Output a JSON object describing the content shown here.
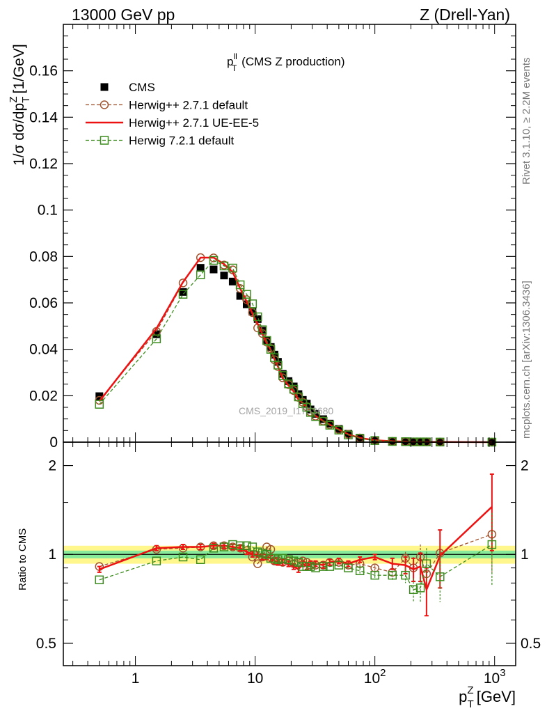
{
  "header": {
    "left": "13000 GeV pp",
    "right": "Z (Drell-Yan)"
  },
  "side_texts": {
    "rivet": "Rivet 3.1.10, ≥ 2.2M events",
    "mcplots": "mcplots.cern.ch [arXiv:1306.3436]"
  },
  "watermark": "CMS_2019_I1753680",
  "colors": {
    "cms": "#000000",
    "herwig_pp_default": "#a0522d",
    "herwig_pp_ueee5": "#ee1111",
    "herwig7": "#3c8c1e",
    "band_outer": "#fff68c",
    "band_inner": "#86ea9a"
  },
  "chart_data": [
    {
      "type": "scatter",
      "title": "p_T^ll (CMS Z production)",
      "title_main": "p",
      "title_sup": "ll",
      "title_sub": "T",
      "title_rest": "(CMS Z production)",
      "ylabel": "1/σ dσ/dp_T^Z [1/GeV]",
      "ylabel_main": "1/σ dσ/dp",
      "ylabel_sub": "T",
      "ylabel_sup": "Z",
      "ylabel_rest": "[1/GeV]",
      "xscale": "log",
      "xlim": [
        0.25,
        1500
      ],
      "ylim": [
        0,
        0.18
      ],
      "y_ticks": [
        0,
        0.02,
        0.04,
        0.06,
        0.08,
        0.1,
        0.12,
        0.14,
        0.16
      ],
      "y_tick_labels": [
        "0",
        "0.02",
        "0.04",
        "0.06",
        "0.08",
        "0.1",
        "0.12",
        "0.14",
        "0.16"
      ],
      "legend_position": "top-left",
      "x": [
        0.5,
        1.5,
        2.5,
        3.5,
        4.5,
        5.5,
        6.5,
        7.5,
        8.5,
        9.5,
        10.5,
        11.5,
        12.5,
        13.5,
        14.5,
        15.5,
        17,
        19,
        21,
        23,
        25,
        27,
        29,
        32,
        37,
        42,
        50,
        60,
        75,
        100,
        140,
        180,
        210,
        240,
        270,
        350,
        950
      ],
      "series": [
        {
          "name": "CMS",
          "style": "data",
          "y": [
            0.0198,
            0.0465,
            0.0647,
            0.0751,
            0.0744,
            0.0718,
            0.0692,
            0.063,
            0.0594,
            0.0562,
            0.053,
            0.048,
            0.0438,
            0.041,
            0.0377,
            0.0346,
            0.0294,
            0.0263,
            0.024,
            0.0207,
            0.0182,
            0.0166,
            0.0141,
            0.0122,
            0.0099,
            0.008,
            0.0057,
            0.0036,
            0.0019,
            0.0009,
            0.0004,
            0.0002,
            0.0001,
            0.0001,
            0.0001,
            5e-05,
            1e-05
          ]
        },
        {
          "name": "Herwig++ 2.7.1 default",
          "style": "dashed-circle",
          "y": [
            0.018,
            0.0477,
            0.0686,
            0.0795,
            0.0794,
            0.0763,
            0.0742,
            0.0662,
            0.0614,
            0.0558,
            0.0492,
            0.0468,
            0.0431,
            0.0404,
            0.0355,
            0.0326,
            0.0277,
            0.0248,
            0.0222,
            0.0193,
            0.0172,
            0.0153,
            0.013,
            0.0112,
            0.0091,
            0.0075,
            0.0054,
            0.0034,
            0.0018,
            0.0008,
            0.0003,
            0.0002,
            0.0001,
            0.0001,
            0.0001,
            5e-05,
            1e-05
          ]
        },
        {
          "name": "Herwig++ 2.7.1 UE-EE-5",
          "style": "solid-line",
          "y": [
            0.0176,
            0.049,
            0.069,
            0.0795,
            0.0795,
            0.0767,
            0.0732,
            0.0662,
            0.0605,
            0.0553,
            0.0509,
            0.0465,
            0.0426,
            0.0398,
            0.0358,
            0.0326,
            0.0275,
            0.0244,
            0.0218,
            0.0183,
            0.0168,
            0.015,
            0.013,
            0.0113,
            0.0091,
            0.0075,
            0.0054,
            0.0033,
            0.0018,
            0.0008,
            0.0004,
            0.0002,
            0.0001,
            0.0001,
            0.0001,
            5e-05,
            1e-05
          ]
        },
        {
          "name": "Herwig 7.2.1 default",
          "style": "dashed-square",
          "y": [
            0.0163,
            0.0445,
            0.0637,
            0.0721,
            0.0783,
            0.0759,
            0.075,
            0.0678,
            0.0637,
            0.0596,
            0.054,
            0.0484,
            0.0438,
            0.04,
            0.0364,
            0.0332,
            0.0287,
            0.0251,
            0.0228,
            0.0195,
            0.0166,
            0.015,
            0.0128,
            0.011,
            0.009,
            0.0073,
            0.0052,
            0.0031,
            0.0016,
            0.0007,
            0.0003,
            0.0002,
            0.0001,
            0.0001,
            0.0001,
            4e-05,
            1e-05
          ]
        }
      ]
    },
    {
      "type": "scatter",
      "ylabel": "Ratio to CMS",
      "xlabel": "p_T^Z [GeV]",
      "xlabel_main": "p",
      "xlabel_sub": "T",
      "xlabel_sup": "Z",
      "xlabel_rest": "[GeV]",
      "xscale": "log",
      "yscale": "log",
      "xlim": [
        0.25,
        1500
      ],
      "ylim": [
        0.42,
        2.4
      ],
      "y_ticks": [
        0.5,
        1,
        2
      ],
      "y_tick_labels": [
        "0.5",
        "1",
        "2"
      ],
      "x_ticks": [
        1,
        10,
        100,
        1000
      ],
      "x_tick_labels": [
        {
          "base": "1",
          "sup": ""
        },
        {
          "base": "10",
          "sup": ""
        },
        {
          "base": "10",
          "sup": "2"
        },
        {
          "base": "10",
          "sup": "3"
        }
      ],
      "band_inner": {
        "lo": 0.97,
        "hi": 1.03
      },
      "band_outer": {
        "lo": 0.93,
        "hi": 1.07
      },
      "x": [
        0.5,
        1.5,
        2.5,
        3.5,
        4.5,
        5.5,
        6.5,
        7.5,
        8.5,
        9.5,
        10.5,
        11.5,
        12.5,
        13.5,
        14.5,
        15.5,
        17,
        19,
        21,
        23,
        25,
        27,
        29,
        32,
        37,
        42,
        50,
        60,
        75,
        100,
        140,
        180,
        210,
        240,
        270,
        350,
        950
      ],
      "series": [
        {
          "name": "Herwig++ 2.7.1 default",
          "style": "dashed-circle",
          "y": [
            0.91,
            1.04,
            1.05,
            1.06,
            1.07,
            1.07,
            1.06,
            1.05,
            1.03,
            0.98,
            0.93,
            0.98,
            1.06,
            1.04,
            0.95,
            0.95,
            0.94,
            0.95,
            0.93,
            0.94,
            0.95,
            0.94,
            0.92,
            0.92,
            0.92,
            0.94,
            0.94,
            0.92,
            0.93,
            0.9,
            0.87,
            0.97,
            0.9,
            0.98,
            0.86,
            1.01,
            1.17
          ],
          "err": [
            0.01,
            0.01,
            0.01,
            0.01,
            0.01,
            0.01,
            0.01,
            0.01,
            0.01,
            0.01,
            0.01,
            0.01,
            0.01,
            0.01,
            0.01,
            0.01,
            0.01,
            0.01,
            0.01,
            0.01,
            0.01,
            0.01,
            0.01,
            0.01,
            0.01,
            0.01,
            0.01,
            0.01,
            0.02,
            0.02,
            0.03,
            0.05,
            0.08,
            0.1,
            0.12,
            0.15,
            0.3
          ]
        },
        {
          "name": "Herwig++ 2.7.1 UE-EE-5",
          "style": "solid-line",
          "y": [
            0.89,
            1.05,
            1.06,
            1.06,
            1.07,
            1.07,
            1.06,
            1.05,
            1.02,
            1.0,
            1.0,
            0.98,
            0.98,
            0.97,
            0.95,
            0.94,
            0.94,
            0.93,
            0.91,
            0.89,
            0.93,
            0.91,
            0.93,
            0.93,
            0.92,
            0.94,
            0.95,
            0.93,
            0.96,
            0.98,
            0.93,
            0.92,
            0.89,
            0.91,
            0.76,
            0.99,
            1.45
          ],
          "err": [
            0.02,
            0.02,
            0.02,
            0.02,
            0.02,
            0.02,
            0.02,
            0.02,
            0.02,
            0.02,
            0.02,
            0.02,
            0.02,
            0.02,
            0.02,
            0.02,
            0.02,
            0.02,
            0.02,
            0.02,
            0.02,
            0.02,
            0.02,
            0.02,
            0.02,
            0.02,
            0.02,
            0.02,
            0.02,
            0.02,
            0.04,
            0.06,
            0.08,
            0.1,
            0.14,
            0.22,
            0.42
          ]
        },
        {
          "name": "Herwig 7.2.1 default",
          "style": "dashed-square",
          "y": [
            0.82,
            0.95,
            0.98,
            0.96,
            1.05,
            1.06,
            1.08,
            1.07,
            1.07,
            1.06,
            1.02,
            1.01,
            1.0,
            0.97,
            0.97,
            0.96,
            0.97,
            0.96,
            0.95,
            0.94,
            0.91,
            0.91,
            0.91,
            0.9,
            0.91,
            0.91,
            0.92,
            0.9,
            0.88,
            0.85,
            0.85,
            0.85,
            0.76,
            0.77,
            0.93,
            0.84,
            1.08
          ],
          "err": [
            0.01,
            0.01,
            0.01,
            0.01,
            0.01,
            0.01,
            0.01,
            0.01,
            0.01,
            0.01,
            0.01,
            0.01,
            0.01,
            0.01,
            0.01,
            0.01,
            0.01,
            0.01,
            0.01,
            0.01,
            0.01,
            0.01,
            0.01,
            0.01,
            0.01,
            0.01,
            0.01,
            0.01,
            0.02,
            0.02,
            0.03,
            0.05,
            0.07,
            0.08,
            0.12,
            0.15,
            0.3
          ]
        }
      ]
    }
  ]
}
